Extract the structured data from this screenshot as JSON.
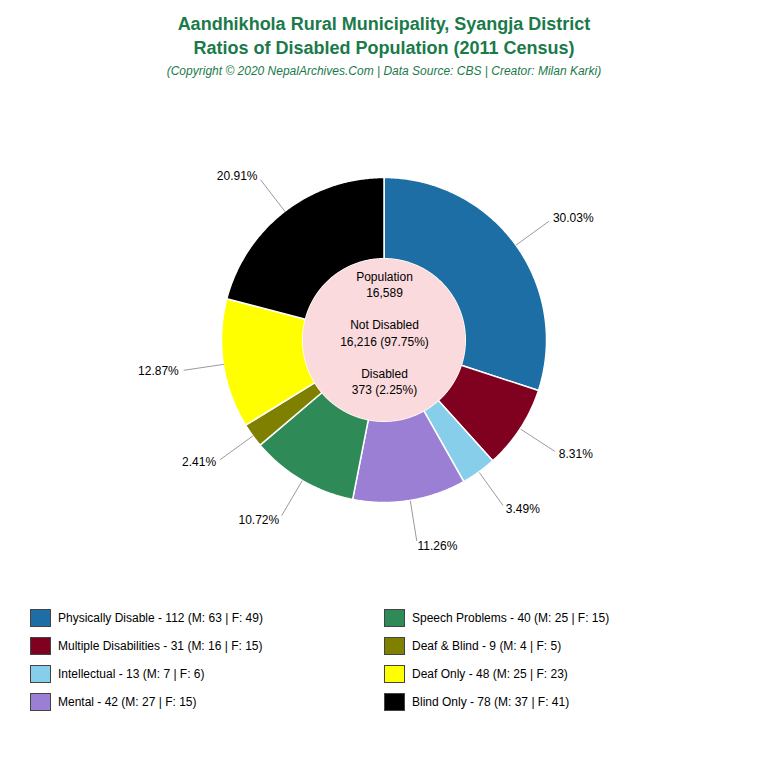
{
  "chart_data": {
    "type": "pie",
    "title": "Aandhikhola Rural Municipality, Syangja District\nRatios of Disabled Population (2011 Census)",
    "subtitle": "(Copyright © 2020 NepalArchives.Com | Data Source: CBS | Creator: Milan Karki)",
    "categories": [
      "Physically Disable - 112 (M: 63 | F: 49)",
      "Multiple Disabilities - 31 (M: 16 | F: 15)",
      "Intellectual - 13 (M: 7 | F: 6)",
      "Mental - 42 (M: 27 | F: 15)",
      "Speech Problems - 40 (M: 25 | F: 15)",
      "Deaf & Blind - 9 (M: 4 | F: 5)",
      "Deaf Only - 48 (M: 25 | F: 23)",
      "Blind Only - 78 (M: 37 | F: 41)"
    ],
    "values": [
      30.03,
      8.31,
      3.49,
      11.26,
      10.72,
      2.41,
      12.87,
      20.91
    ],
    "value_labels": [
      "30.03%",
      "8.31%",
      "3.49%",
      "11.26%",
      "10.72%",
      "2.41%",
      "12.87%",
      "20.91%"
    ],
    "colors": [
      "#1c6ea4",
      "#800020",
      "#87ceeb",
      "#9b7fd4",
      "#2e8b57",
      "#808000",
      "#ffff00",
      "#000000"
    ],
    "annotations": [
      "Population\n16,589\n\nNot Disabled\n16,216 (97.75%)\n\nDisabled\n373 (2.25%)"
    ],
    "data_labels": true,
    "legend": "bottom"
  }
}
